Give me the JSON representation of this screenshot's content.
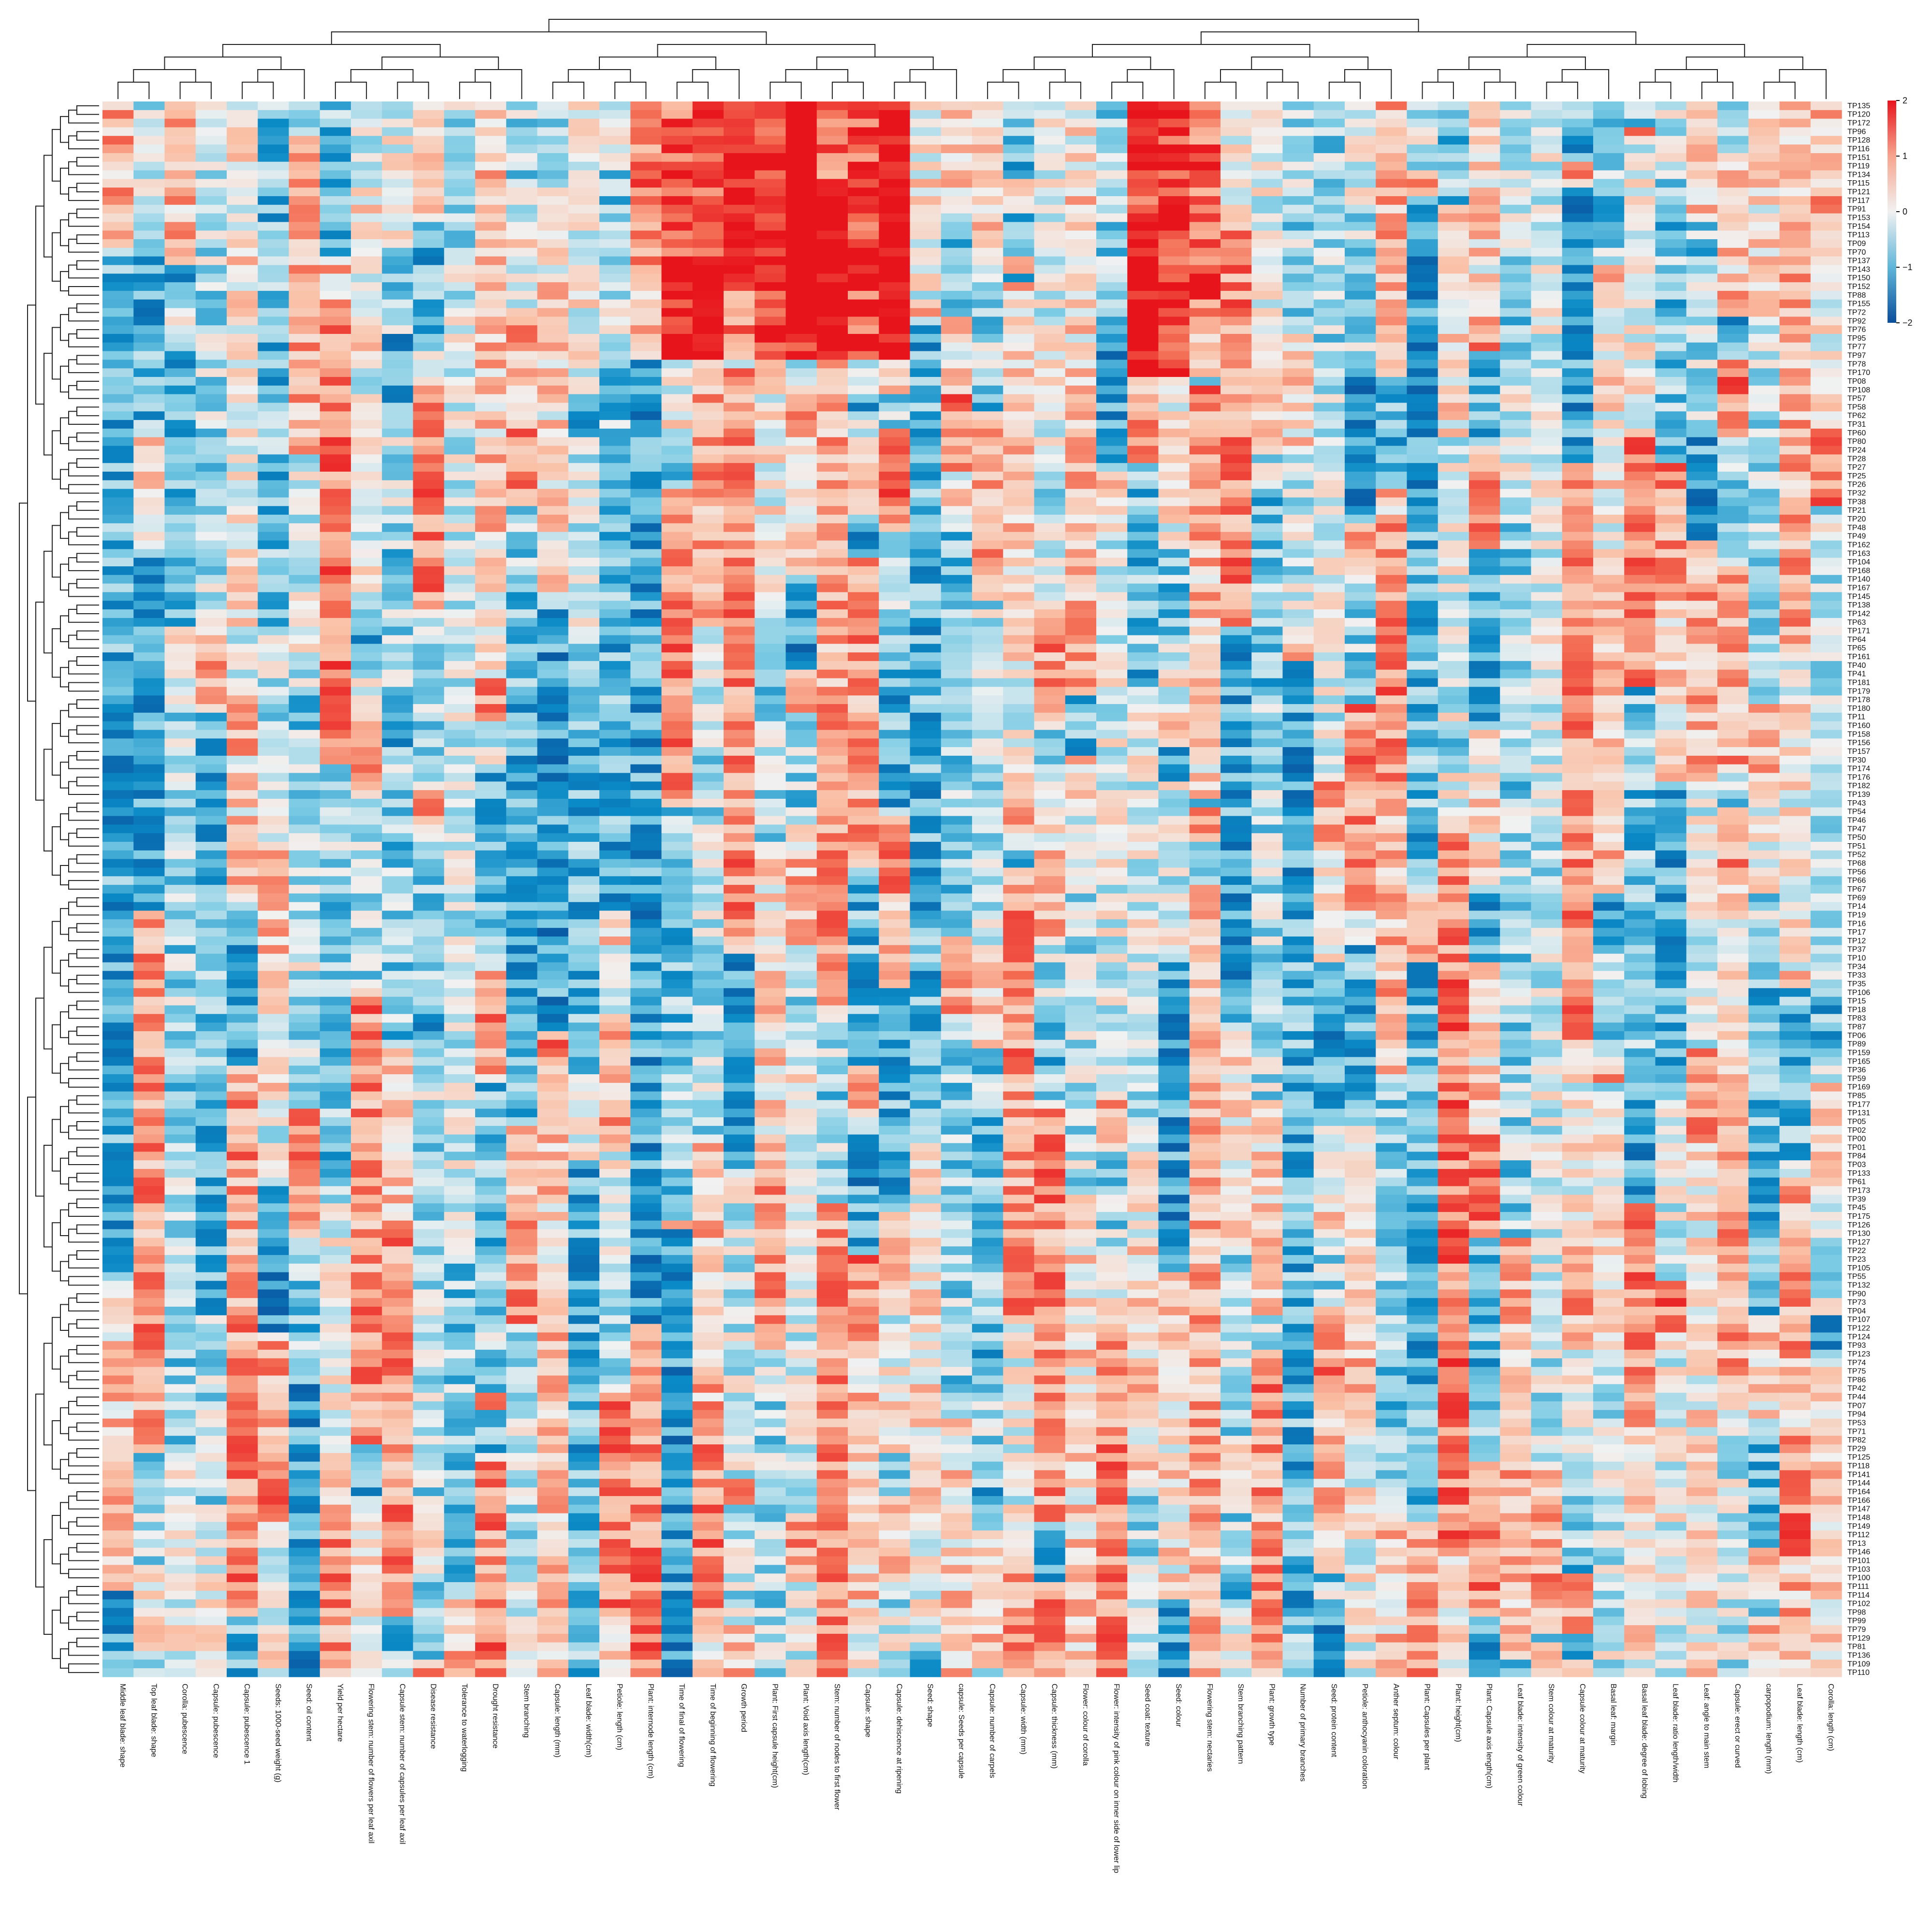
{
  "chart_data": {
    "type": "heatmap",
    "title": "",
    "xlabel": "",
    "ylabel": "",
    "colorbar": {
      "ticks": [
        2,
        1,
        0,
        -1,
        -2
      ],
      "tick_labels": [
        "2",
        "1",
        "0",
        "−1",
        "−2"
      ],
      "range": [
        -2,
        2
      ],
      "low_color": "#0a4e9b",
      "mid_color": "#f1f1f1",
      "high_color": "#e8141c"
    },
    "grid": false,
    "legend_position": "top-right",
    "row_dendrogram": true,
    "column_dendrogram": true,
    "columns": [
      "Middle leaf blade: shape",
      "Top leaf blade: shape",
      "Corolla: pubescence",
      "Capsule: pubescence",
      "Capsule: pubescence 1",
      "Seeds: 1000-seed weight (g)",
      "Seed: oil content",
      "Yield per hectare",
      "Flowering stem: number of flowers per leaf axil",
      "Capsule stem: number of capsules per leaf axil",
      "Disease resistance",
      "Tolerance to waterlogging",
      "Drought resistance",
      "Stem branching",
      "Capsule: length (mm)",
      "Leaf blade: width(cm)",
      "Petiole: length (cm)",
      "Plant: internode length (cm)",
      "Time of final of flowering",
      "Time of beginning of flowering",
      "Growth period",
      "Plant: First capsule height(cm)",
      "Plant: Void axis length(cm)",
      "Stem: number of nodes to first flower",
      "Capsule: shape",
      "Capsule: dehiscence at ripening",
      "Seed: shape",
      "capsule: Seeds per capsule",
      "Capsule: number of carpels",
      "Capsule: width (mm)",
      "Capsule: thickness (mm)",
      "Flower: colour of corolla",
      "Flower: intensity of pink colour on inner side of lower lip",
      "Seed coat: texture",
      "Seed: colour",
      "Flowering stem: nectaries",
      "Stem branching pattern",
      "Plant: growth type",
      "Number of primary branches",
      "Seed: protein content",
      "Petiole: anthocyanin coloration",
      "Anther septum: colour",
      "Plant: Capsules per plant",
      "Plant: height(cm)",
      "Plant: Capsule axis length(cm)",
      "Leaf blade: intensity of green colour",
      "Stem colour at maturity",
      "Capsule colour at maturity",
      "Basal leaf: margin",
      "Basal leaf blade: degree of lobing",
      "Leaf blade: ratio length/width",
      "Leaf: angle to main stem",
      "Capsule: erect or curved",
      "carpopodium: length (mm)",
      "Leaf blade: length (cm)",
      "Corolla: length (cm)"
    ],
    "rows": [
      "TP135",
      "TP120",
      "TP172",
      "TP96",
      "TP128",
      "TP116",
      "TP151",
      "TP119",
      "TP134",
      "TP115",
      "TP121",
      "TP117",
      "TP91",
      "TP153",
      "TP154",
      "TP113",
      "TP09",
      "TP70",
      "TP137",
      "TP143",
      "TP150",
      "TP152",
      "TP88",
      "TP155",
      "TP72",
      "TP92",
      "TP76",
      "TP95",
      "TP77",
      "TP97",
      "TP78",
      "TP170",
      "TP08",
      "TP108",
      "TP57",
      "TP58",
      "TP62",
      "TP31",
      "TP60",
      "TP80",
      "TP24",
      "TP28",
      "TP27",
      "TP25",
      "TP26",
      "TP32",
      "TP38",
      "TP21",
      "TP20",
      "TP48",
      "TP49",
      "TP162",
      "TP163",
      "TP104",
      "TP168",
      "TP140",
      "TP167",
      "TP145",
      "TP138",
      "TP142",
      "TP63",
      "TP171",
      "TP64",
      "TP65",
      "TP161",
      "TP40",
      "TP41",
      "TP181",
      "TP179",
      "TP178",
      "TP180",
      "TP11",
      "TP160",
      "TP158",
      "TP156",
      "TP157",
      "TP30",
      "TP174",
      "TP176",
      "TP182",
      "TP139",
      "TP43",
      "TP54",
      "TP46",
      "TP47",
      "TP50",
      "TP51",
      "TP52",
      "TP68",
      "TP56",
      "TP66",
      "TP67",
      "TP69",
      "TP14",
      "TP19",
      "TP16",
      "TP17",
      "TP12",
      "TP37",
      "TP10",
      "TP34",
      "TP33",
      "TP35",
      "TP106",
      "TP15",
      "TP18",
      "TP83",
      "TP87",
      "TP06",
      "TP89",
      "TP159",
      "TP165",
      "TP36",
      "TP59",
      "TP169",
      "TP85",
      "TP177",
      "TP131",
      "TP05",
      "TP02",
      "TP00",
      "TP01",
      "TP84",
      "TP03",
      "TP133",
      "TP61",
      "TP173",
      "TP39",
      "TP45",
      "TP175",
      "TP126",
      "TP130",
      "TP127",
      "TP22",
      "TP23",
      "TP105",
      "TP55",
      "TP132",
      "TP90",
      "TP73",
      "TP04",
      "TP107",
      "TP122",
      "TP124",
      "TP93",
      "TP123",
      "TP74",
      "TP75",
      "TP86",
      "TP42",
      "TP44",
      "TP07",
      "TP94",
      "TP53",
      "TP71",
      "TP82",
      "TP29",
      "TP125",
      "TP118",
      "TP141",
      "TP144",
      "TP164",
      "TP166",
      "TP147",
      "TP148",
      "TP149",
      "TP112",
      "TP13",
      "TP146",
      "TP101",
      "TP103",
      "TP100",
      "TP111",
      "TP114",
      "TP102",
      "TP98",
      "TP99",
      "TP79",
      "TP129",
      "TP81",
      "TP136",
      "TP109",
      "TP110"
    ]
  }
}
